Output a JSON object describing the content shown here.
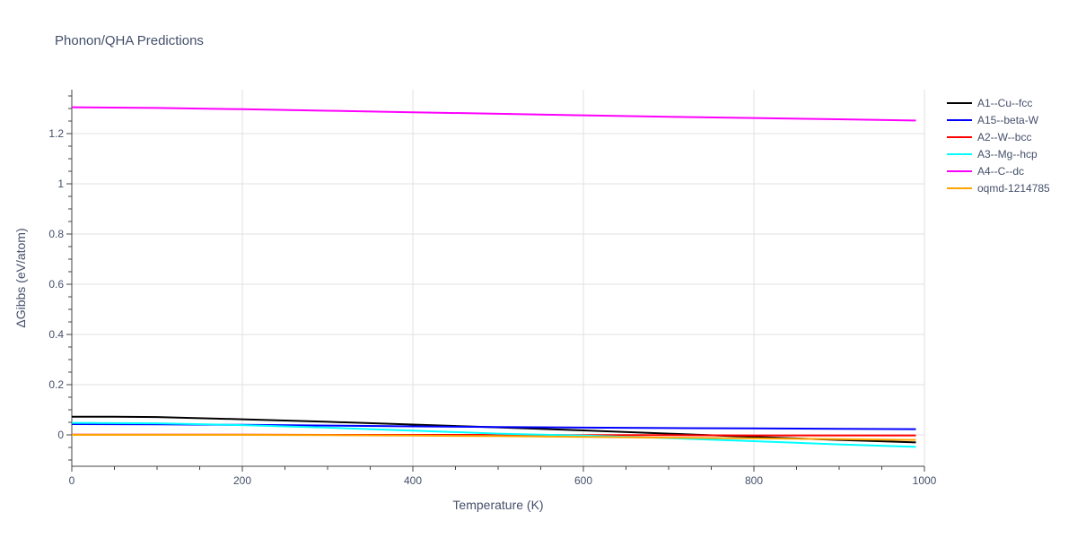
{
  "chart_data": {
    "type": "line",
    "title": "Phonon/QHA Predictions",
    "xlabel": "Temperature (K)",
    "ylabel": "ΔGibbs (eV/atom)",
    "xlim": [
      0,
      1000
    ],
    "ylim": [
      -0.125,
      1.375
    ],
    "xticks": [
      0,
      200,
      400,
      600,
      800,
      1000
    ],
    "yticks": [
      0,
      0.2,
      0.4,
      0.6,
      0.8,
      1,
      1.2
    ],
    "xtick_labels": [
      "0",
      "200",
      "400",
      "600",
      "800",
      "1000"
    ],
    "ytick_labels": [
      "0",
      "0.2",
      "0.4",
      "0.6",
      "0.8",
      "1",
      "1.2"
    ],
    "grid": true,
    "legend_position": "right",
    "series": [
      {
        "name": "A1--Cu--fcc",
        "color": "#000000",
        "x": [
          0,
          50,
          100,
          200,
          300,
          400,
          500,
          600,
          700,
          800,
          900,
          990
        ],
        "y": [
          0.072,
          0.072,
          0.071,
          0.062,
          0.052,
          0.041,
          0.03,
          0.018,
          0.005,
          -0.008,
          -0.02,
          -0.03
        ]
      },
      {
        "name": "A15--beta-W",
        "color": "#0000ff",
        "x": [
          0,
          100,
          200,
          300,
          400,
          500,
          600,
          700,
          800,
          900,
          990
        ],
        "y": [
          0.043,
          0.042,
          0.04,
          0.037,
          0.034,
          0.031,
          0.029,
          0.027,
          0.026,
          0.024,
          0.023
        ]
      },
      {
        "name": "A2--W--bcc",
        "color": "#ff0000",
        "x": [
          0,
          100,
          200,
          300,
          400,
          500,
          600,
          700,
          800,
          900,
          990
        ],
        "y": [
          0.001,
          0.001,
          0.001,
          0.0,
          0.0,
          0.0,
          -0.001,
          -0.001,
          -0.002,
          -0.002,
          -0.002
        ]
      },
      {
        "name": "A3--Mg--hcp",
        "color": "#00ffff",
        "x": [
          0,
          100,
          200,
          300,
          400,
          500,
          600,
          700,
          800,
          900,
          990
        ],
        "y": [
          0.048,
          0.046,
          0.039,
          0.029,
          0.017,
          0.005,
          -0.003,
          -0.013,
          -0.025,
          -0.038,
          -0.048
        ]
      },
      {
        "name": "A4--C--dc",
        "color": "#ff00ff",
        "x": [
          0,
          100,
          200,
          300,
          400,
          500,
          600,
          700,
          800,
          900,
          990
        ],
        "y": [
          1.305,
          1.302,
          1.297,
          1.291,
          1.285,
          1.279,
          1.273,
          1.267,
          1.262,
          1.257,
          1.252
        ]
      },
      {
        "name": "oqmd-1214785",
        "color": "#ffa500",
        "x": [
          0,
          100,
          200,
          300,
          400,
          500,
          600,
          700,
          800,
          900,
          990
        ],
        "y": [
          0.0,
          0.0,
          0.0,
          -0.001,
          -0.003,
          -0.005,
          -0.008,
          -0.011,
          -0.014,
          -0.017,
          -0.02
        ]
      }
    ]
  }
}
